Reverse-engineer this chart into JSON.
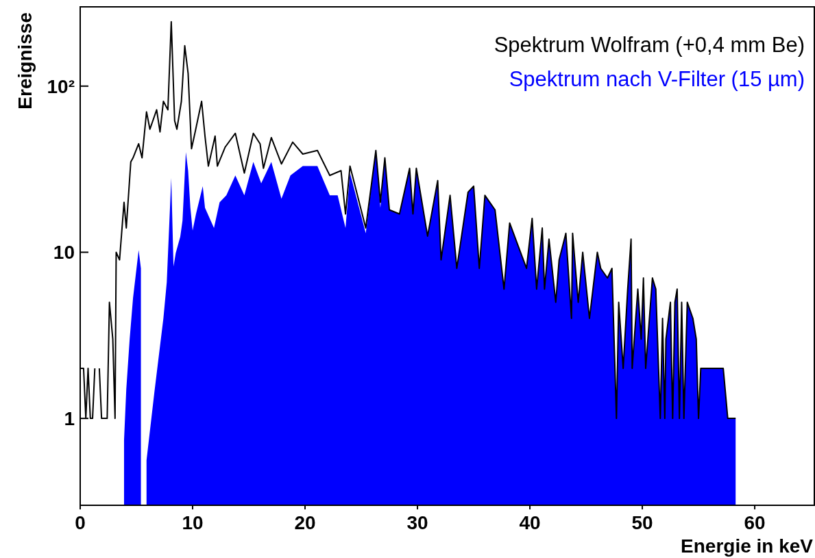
{
  "chart_data": {
    "type": "line",
    "xlabel": "Energie in keV",
    "ylabel": "Ereignisse",
    "log": "y",
    "xlim": [
      0,
      65.3
    ],
    "xticks": [
      0,
      10,
      20,
      30,
      40,
      50,
      60
    ],
    "ylim": [
      0.3,
      300
    ],
    "yticks": [
      1,
      10,
      {
        "value": 100,
        "label": "10²"
      }
    ],
    "legend": "top right",
    "grid": false,
    "series": [
      {
        "name": "Spektrum Wolfram (+0,4 mm Be)",
        "color": "#000000",
        "x": [
          0.0,
          0.3,
          0.5,
          0.7,
          0.9,
          1.1,
          1.3,
          1.5,
          1.7,
          1.9,
          2.2,
          2.4,
          2.6,
          2.9,
          3.1,
          3.2,
          3.5,
          3.9,
          4.1,
          4.5,
          4.7,
          5.2,
          5.5,
          5.9,
          6.2,
          6.8,
          7.1,
          7.4,
          7.8,
          8.1,
          8.4,
          8.6,
          9.0,
          9.3,
          9.6,
          9.9,
          10.2,
          10.8,
          11.1,
          11.4,
          12.0,
          12.2,
          12.9,
          13.8,
          14.6,
          15.4,
          16.0,
          16.3,
          17.0,
          17.9,
          18.9,
          19.8,
          21.1,
          22.2,
          23.2,
          23.6,
          24.0,
          25.4,
          26.3,
          26.7,
          27.1,
          27.5,
          28.4,
          29.3,
          29.6,
          29.9,
          30.9,
          31.8,
          32.1,
          32.9,
          33.5,
          34.5,
          35.0,
          35.5,
          36.0,
          36.9,
          37.7,
          38.2,
          39.7,
          40.2,
          40.6,
          41.1,
          41.3,
          41.7,
          42.3,
          42.6,
          43.2,
          43.7,
          43.8,
          44.3,
          44.7,
          45.3,
          46.0,
          46.3,
          46.9,
          47.3,
          47.7,
          47.9,
          48.3,
          48.7,
          49.0,
          49.1,
          49.6,
          49.9,
          50.1,
          50.3,
          50.9,
          51.2,
          51.6,
          51.8,
          52.0,
          52.1,
          52.5,
          52.7,
          52.9,
          53.1,
          53.3,
          53.5,
          53.7,
          54.0,
          54.5,
          54.8,
          55.0,
          55.2,
          55.6,
          55.9,
          56.3,
          56.6,
          57.2,
          57.6,
          58.0,
          58.3
        ],
        "values": [
          2,
          2,
          1,
          2,
          1,
          1,
          2,
          null,
          2,
          1,
          1,
          1,
          5,
          3,
          1,
          10,
          9,
          20,
          14,
          35,
          37,
          45,
          37,
          70,
          55,
          72,
          53,
          81,
          72,
          244,
          62,
          55,
          81,
          175,
          119,
          42,
          52,
          81,
          50,
          33,
          50,
          33,
          43,
          52,
          30,
          52,
          45,
          32,
          49,
          34,
          46,
          39,
          41,
          29,
          31,
          17,
          33,
          14,
          41,
          20,
          37,
          18,
          17,
          32,
          17,
          32,
          12.5,
          27,
          9,
          22,
          8,
          23,
          25,
          8,
          22,
          18,
          6,
          15,
          8,
          16,
          6,
          14,
          6,
          12,
          5,
          9,
          13,
          4,
          13,
          5,
          10,
          4,
          10,
          8,
          7,
          8,
          1,
          5,
          2,
          6,
          12,
          2,
          6,
          3,
          7,
          2,
          7,
          6,
          1,
          4,
          1,
          3,
          5,
          1,
          5,
          6,
          1,
          5,
          1,
          5,
          4,
          3,
          1,
          2,
          2,
          2,
          2,
          2,
          2,
          1,
          1,
          1
        ]
      },
      {
        "name": "Spektrum nach V-Filter (15 µm)",
        "color": "#0000ff",
        "type": "area",
        "x": [
          3.9,
          4.1,
          4.4,
          4.7,
          5.2,
          5.4,
          5.5,
          5.9,
          6.6,
          7.4,
          7.7,
          8.1,
          8.3,
          8.5,
          8.9,
          9.1,
          9.4,
          9.6,
          9.8,
          10.0,
          10.3,
          10.9,
          11.1,
          11.9,
          12.4,
          13.0,
          13.8,
          14.6,
          15.4,
          16.1,
          17.0,
          17.9,
          18.7,
          19.8,
          21.1,
          22.2,
          22.9,
          23.6,
          24.0,
          25.4,
          26.3,
          26.7,
          27.1,
          27.5,
          28.4,
          29.3,
          29.6,
          29.9,
          30.9,
          31.8,
          32.1,
          32.9,
          33.5,
          34.5,
          35.0,
          35.5,
          36.0,
          36.9,
          37.7,
          38.2,
          39.7,
          40.2,
          40.6,
          41.1,
          41.3,
          41.7,
          42.3,
          42.6,
          43.2,
          43.7,
          43.8,
          44.3,
          44.7,
          45.3,
          46.0,
          46.3,
          46.9,
          47.3,
          47.7,
          47.9,
          48.3,
          48.7,
          49.0,
          49.1,
          49.6,
          49.9,
          50.1,
          50.3,
          50.9,
          51.2,
          51.6,
          51.8,
          52.0,
          52.1,
          52.5,
          52.7,
          52.9,
          53.1,
          53.3,
          53.5,
          53.7,
          54.0,
          54.5,
          54.8,
          55.0,
          55.2,
          55.6,
          55.9,
          56.3,
          56.6,
          57.2,
          57.6,
          58.0,
          58.3
        ],
        "values": [
          0.74,
          1.5,
          3,
          5.3,
          10.3,
          8,
          null,
          0.56,
          1.44,
          4,
          6.6,
          28,
          8.2,
          9.9,
          12.4,
          15.5,
          40,
          31,
          18.5,
          13.5,
          17,
          25,
          18.5,
          14,
          20,
          22,
          29,
          22,
          35,
          26,
          35,
          21,
          29,
          33,
          33,
          22,
          22,
          14,
          30,
          13,
          41,
          18.5,
          37,
          18,
          17,
          32,
          17,
          32,
          12.5,
          27,
          9,
          22,
          8,
          23,
          25,
          8,
          22,
          18,
          6,
          15,
          8,
          16,
          6,
          14,
          6,
          12,
          5,
          9,
          13,
          4,
          13,
          5,
          10,
          4,
          10,
          8,
          7,
          8,
          1,
          5,
          2,
          6,
          12,
          2,
          6,
          3,
          7,
          2,
          7,
          6,
          1,
          4,
          1,
          3,
          5,
          1,
          5,
          6,
          1,
          5,
          1,
          5,
          4,
          3,
          1,
          2,
          2,
          2,
          2,
          2,
          2,
          1,
          1,
          1
        ]
      }
    ]
  }
}
